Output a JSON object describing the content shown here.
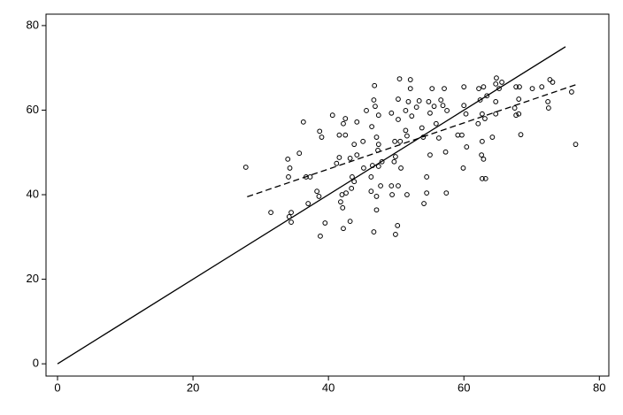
{
  "chart_data": {
    "type": "scatter",
    "xlim": [
      -1.7,
      81.4
    ],
    "ylim": [
      -2.9,
      82.7
    ],
    "xticks": [
      0,
      20,
      40,
      60,
      80
    ],
    "yticks": [
      0,
      20,
      40,
      60,
      80
    ],
    "color": "#000000",
    "points": {
      "x": [
        27.8,
        31.5,
        34,
        34.3,
        34.1,
        34.5,
        34.2,
        34.5,
        35.7,
        36.3,
        36.7,
        37.3,
        37,
        38.3,
        38.6,
        38.7,
        39,
        38.8,
        39.5,
        40.6,
        41.2,
        41.6,
        41.6,
        42,
        41.8,
        42.1,
        42.2,
        42.5,
        42.5,
        42.2,
        42.6,
        43.2,
        43.2,
        43.5,
        43.8,
        43.4,
        43.8,
        44.2,
        44.2,
        45.1,
        45.2,
        45.6,
        46.3,
        46.3,
        46.4,
        46.7,
        46.9,
        46.8,
        47.1,
        47.4,
        47.3,
        46.5,
        47.4,
        47.1,
        47.1,
        46.7,
        47.4,
        47.9,
        47.7,
        49.3,
        49.3,
        49.4,
        49.7,
        49.8,
        49.9,
        49.9,
        50.2,
        50.3,
        50.3,
        50.5,
        50.6,
        50.7,
        50.3,
        51.4,
        51.4,
        51.6,
        51.8,
        52.1,
        52.1,
        51.6,
        52.3,
        53,
        53.4,
        53.8,
        54,
        54.1,
        54.5,
        54.5,
        54.8,
        55,
        55,
        55.3,
        55.6,
        55.9,
        56.3,
        56.6,
        56.9,
        57.1,
        57.3,
        57.4,
        57.5,
        59.1,
        59.7,
        59.9,
        60,
        60,
        60.3,
        60.4,
        62.1,
        62.2,
        62.4,
        62.6,
        62.7,
        62.7,
        62.9,
        62.7,
        63.2,
        62.9,
        63.1,
        63.4,
        64.2,
        64.7,
        64.7,
        64.7,
        64.8,
        65.2,
        65.6,
        67.5,
        67.7,
        67.7,
        68.1,
        68.1,
        68.2,
        68.4,
        70.1,
        71.5,
        72.4,
        72.5,
        72.7,
        73.1,
        75.9,
        76.5
      ],
      "y": [
        46.5,
        35.8,
        48.4,
        46.3,
        44.2,
        35.8,
        34.8,
        33.5,
        49.8,
        57.2,
        44.2,
        44.2,
        37.9,
        40.8,
        39.6,
        55,
        53.6,
        30.2,
        33.3,
        58.8,
        47.4,
        48.8,
        54.1,
        40,
        38.3,
        36.9,
        56.8,
        54.1,
        58,
        32,
        40.4,
        33.7,
        48.6,
        44.2,
        43.1,
        41.5,
        51.9,
        49.4,
        57.2,
        52.6,
        46.3,
        59.9,
        44.2,
        40.8,
        56.1,
        62.4,
        60.9,
        65.8,
        53.6,
        51.9,
        50.5,
        46.9,
        46.7,
        39.6,
        36.4,
        31.2,
        58.8,
        47.8,
        42.1,
        59.3,
        42.1,
        40,
        47.8,
        52.6,
        49,
        30.6,
        32.7,
        57.8,
        62.6,
        67.4,
        52.6,
        46.3,
        42.1,
        55.2,
        59.9,
        53.9,
        62,
        65.1,
        67.2,
        40,
        58.6,
        60.7,
        62.2,
        55.8,
        53.6,
        37.9,
        40.4,
        44.2,
        62,
        59.3,
        49.4,
        65.1,
        60.9,
        56.8,
        53.4,
        62.4,
        61.1,
        65.1,
        50.1,
        40.4,
        59.9,
        54.1,
        54.1,
        46.3,
        65.5,
        61.1,
        59.1,
        51.3,
        56.8,
        65.1,
        62.4,
        49.4,
        59.1,
        52.6,
        48.4,
        43.8,
        43.8,
        65.5,
        58,
        63.4,
        53.6,
        62,
        66.2,
        59.1,
        67.6,
        65.1,
        66.6,
        60.5,
        58.8,
        65.5,
        62.6,
        59.1,
        65.5,
        54.2,
        65.1,
        65.5,
        62,
        60.5,
        67.2,
        66.6,
        64.3,
        51.9
      ]
    },
    "lines": [
      {
        "x": [
          0,
          75
        ],
        "y": [
          0,
          75
        ],
        "style": "solid"
      },
      {
        "x": [
          28,
          76.5
        ],
        "y": [
          39.5,
          66
        ],
        "style": "dashed"
      }
    ]
  }
}
